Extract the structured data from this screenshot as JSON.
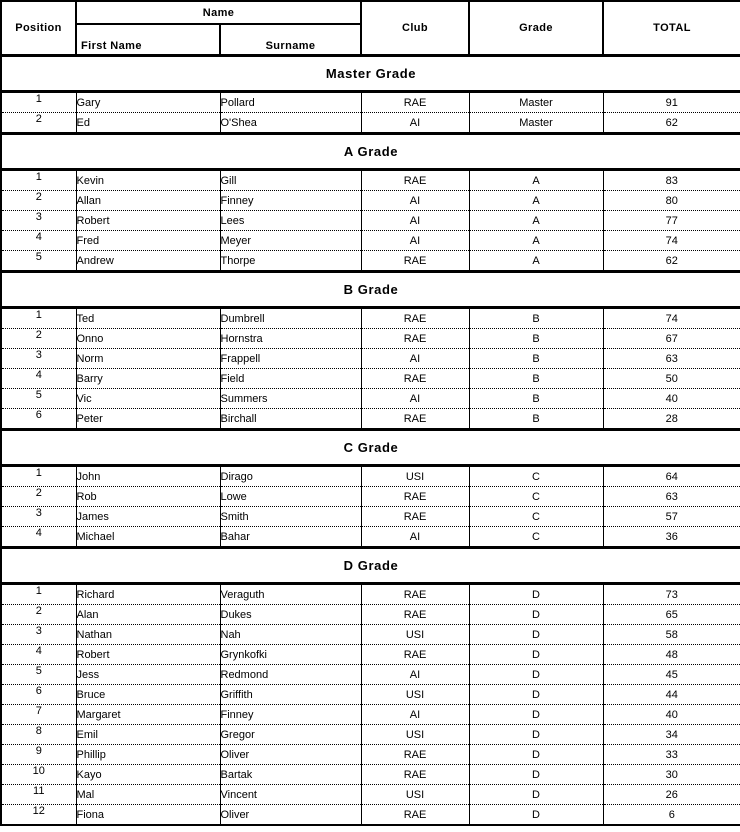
{
  "table": {
    "headers": {
      "position": "Position",
      "name": "Name",
      "first_name": "First Name",
      "surname": "Surname",
      "club": "Club",
      "grade": "Grade",
      "total": "TOTAL"
    },
    "sections": [
      {
        "title": "Master Grade",
        "rows": [
          {
            "position": "1",
            "first_name": "Gary",
            "surname": "Pollard",
            "club": "RAE",
            "grade": "Master",
            "total": "91"
          },
          {
            "position": "2",
            "first_name": "Ed",
            "surname": "O'Shea",
            "club": "AI",
            "grade": "Master",
            "total": "62"
          }
        ]
      },
      {
        "title": "A Grade",
        "rows": [
          {
            "position": "1",
            "first_name": "Kevin",
            "surname": "Gill",
            "club": "RAE",
            "grade": "A",
            "total": "83"
          },
          {
            "position": "2",
            "first_name": "Allan",
            "surname": "Finney",
            "club": "AI",
            "grade": "A",
            "total": "80"
          },
          {
            "position": "3",
            "first_name": "Robert",
            "surname": "Lees",
            "club": "AI",
            "grade": "A",
            "total": "77"
          },
          {
            "position": "4",
            "first_name": "Fred",
            "surname": "Meyer",
            "club": "AI",
            "grade": "A",
            "total": "74"
          },
          {
            "position": "5",
            "first_name": "Andrew",
            "surname": "Thorpe",
            "club": "RAE",
            "grade": "A",
            "total": "62"
          }
        ]
      },
      {
        "title": "B Grade",
        "rows": [
          {
            "position": "1",
            "first_name": "Ted",
            "surname": "Dumbrell",
            "club": "RAE",
            "grade": "B",
            "total": "74"
          },
          {
            "position": "2",
            "first_name": "Onno",
            "surname": "Hornstra",
            "club": "RAE",
            "grade": "B",
            "total": "67"
          },
          {
            "position": "3",
            "first_name": "Norm",
            "surname": "Frappell",
            "club": "AI",
            "grade": "B",
            "total": "63"
          },
          {
            "position": "4",
            "first_name": "Barry",
            "surname": "Field",
            "club": "RAE",
            "grade": "B",
            "total": "50"
          },
          {
            "position": "5",
            "first_name": "Vic",
            "surname": "Summers",
            "club": "AI",
            "grade": "B",
            "total": "40"
          },
          {
            "position": "6",
            "first_name": "Peter",
            "surname": "Birchall",
            "club": "RAE",
            "grade": "B",
            "total": "28"
          }
        ]
      },
      {
        "title": "C Grade",
        "rows": [
          {
            "position": "1",
            "first_name": "John",
            "surname": "Dirago",
            "club": "USI",
            "grade": "C",
            "total": "64"
          },
          {
            "position": "2",
            "first_name": "Rob",
            "surname": "Lowe",
            "club": "RAE",
            "grade": "C",
            "total": "63"
          },
          {
            "position": "3",
            "first_name": "James",
            "surname": "Smith",
            "club": "RAE",
            "grade": "C",
            "total": "57"
          },
          {
            "position": "4",
            "first_name": "Michael",
            "surname": "Bahar",
            "club": "AI",
            "grade": "C",
            "total": "36"
          }
        ]
      },
      {
        "title": "D Grade",
        "rows": [
          {
            "position": "1",
            "first_name": "Richard",
            "surname": "Veraguth",
            "club": "RAE",
            "grade": "D",
            "total": "73"
          },
          {
            "position": "2",
            "first_name": "Alan",
            "surname": "Dukes",
            "club": "RAE",
            "grade": "D",
            "total": "65"
          },
          {
            "position": "3",
            "first_name": "Nathan",
            "surname": "Nah",
            "club": "USI",
            "grade": "D",
            "total": "58"
          },
          {
            "position": "4",
            "first_name": "Robert",
            "surname": "Grynkofki",
            "club": "RAE",
            "grade": "D",
            "total": "48"
          },
          {
            "position": "5",
            "first_name": "Jess",
            "surname": "Redmond",
            "club": "AI",
            "grade": "D",
            "total": "45"
          },
          {
            "position": "6",
            "first_name": "Bruce",
            "surname": "Griffith",
            "club": "USI",
            "grade": "D",
            "total": "44"
          },
          {
            "position": "7",
            "first_name": "Margaret",
            "surname": "Finney",
            "club": "AI",
            "grade": "D",
            "total": "40"
          },
          {
            "position": "8",
            "first_name": "Emil",
            "surname": "Gregor",
            "club": "USI",
            "grade": "D",
            "total": "34"
          },
          {
            "position": "9",
            "first_name": "Phillip",
            "surname": "Oliver",
            "club": "RAE",
            "grade": "D",
            "total": "33"
          },
          {
            "position": "10",
            "first_name": "Kayo",
            "surname": "Bartak",
            "club": "RAE",
            "grade": "D",
            "total": "30"
          },
          {
            "position": "11",
            "first_name": "Mal",
            "surname": "Vincent",
            "club": "USI",
            "grade": "D",
            "total": "26"
          },
          {
            "position": "12",
            "first_name": "Fiona",
            "surname": "Oliver",
            "club": "RAE",
            "grade": "D",
            "total": "6"
          }
        ]
      }
    ]
  }
}
